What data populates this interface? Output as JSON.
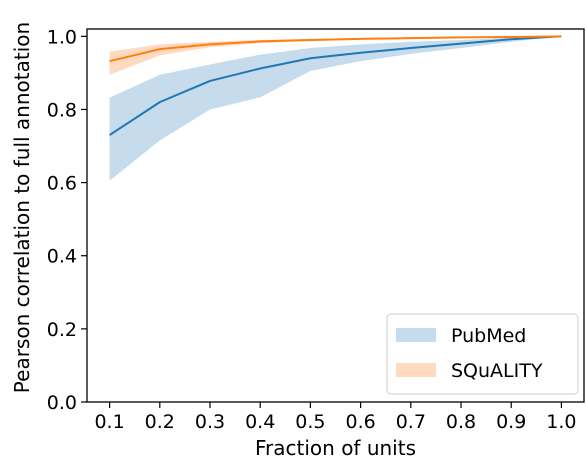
{
  "chart_data": {
    "type": "line",
    "title": "",
    "xlabel": "Fraction of units",
    "ylabel": "Pearson correlation to full annotation",
    "x": [
      0.1,
      0.2,
      0.3,
      0.4,
      0.5,
      0.6,
      0.7,
      0.8,
      0.9,
      1.0
    ],
    "xticks": [
      "0.1",
      "0.2",
      "0.3",
      "0.4",
      "0.5",
      "0.6",
      "0.7",
      "0.8",
      "0.9",
      "1.0"
    ],
    "yticks": [
      "0.0",
      "0.2",
      "0.4",
      "0.6",
      "0.8",
      "1.0"
    ],
    "xlim": [
      0.055,
      1.045
    ],
    "ylim": [
      0.0,
      1.02
    ],
    "grid": false,
    "legend_position": "bottom-right",
    "series": [
      {
        "name": "PubMed",
        "color": "#1f77b4",
        "band_color": "#c6dcec",
        "values": [
          0.73,
          0.82,
          0.878,
          0.912,
          0.94,
          0.955,
          0.968,
          0.98,
          0.992,
          1.0
        ],
        "lower": [
          0.605,
          0.715,
          0.8,
          0.833,
          0.905,
          0.932,
          0.952,
          0.968,
          0.985,
          1.0
        ],
        "upper": [
          0.832,
          0.895,
          0.923,
          0.95,
          0.968,
          0.978,
          0.985,
          0.99,
          0.996,
          1.0
        ]
      },
      {
        "name": "SQuALITY",
        "color": "#ff7f0e",
        "band_color": "#ffdac0",
        "values": [
          0.932,
          0.965,
          0.978,
          0.986,
          0.99,
          0.993,
          0.995,
          0.997,
          0.998,
          1.0
        ],
        "lower": [
          0.895,
          0.948,
          0.97,
          0.981,
          0.987,
          0.991,
          0.993,
          0.995,
          0.997,
          1.0
        ],
        "upper": [
          0.958,
          0.978,
          0.985,
          0.99,
          0.993,
          0.995,
          0.997,
          0.998,
          0.999,
          1.0
        ]
      }
    ]
  }
}
